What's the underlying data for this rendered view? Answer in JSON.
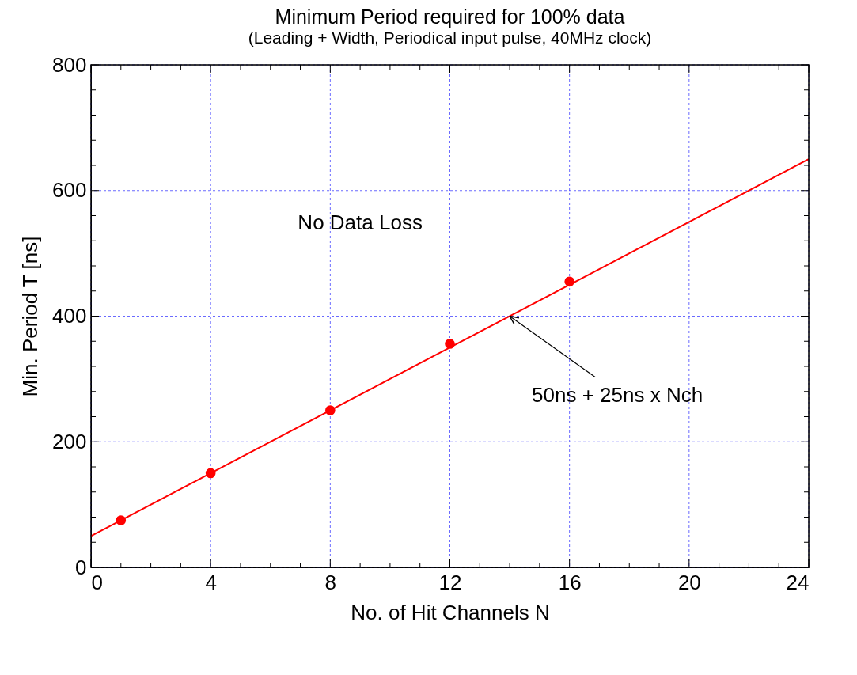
{
  "chart_data": {
    "type": "scatter",
    "title": "Minimum Period required for 100% data",
    "subtitle": "(Leading + Width, Periodical input pulse, 40MHz clock)",
    "xlabel": "No. of Hit Channels N",
    "ylabel": "Min. Period T [ns]",
    "x": [
      1,
      4,
      8,
      12,
      16
    ],
    "series": [
      {
        "type": "scatter",
        "color": "#ff0000",
        "values": [
          75,
          150,
          250,
          356,
          455
        ],
        "marker": "circle"
      },
      {
        "type": "line",
        "color": "#ff0000",
        "x": [
          0,
          24
        ],
        "values": [
          50,
          650
        ],
        "marker": "none",
        "line_style": "solid"
      }
    ],
    "xlim": [
      0,
      24
    ],
    "ylim": [
      0,
      800
    ],
    "xticks": [
      0,
      {
        "value": 1,
        "label": null
      },
      {
        "value": 2,
        "label": null
      },
      {
        "value": 3,
        "label": null
      },
      4,
      {
        "value": 5,
        "label": null
      },
      {
        "value": 6,
        "label": null
      },
      {
        "value": 7,
        "label": null
      },
      8,
      {
        "value": 9,
        "label": null
      },
      {
        "value": 10,
        "label": null
      },
      {
        "value": 11,
        "label": null
      },
      12,
      {
        "value": 13,
        "label": null
      },
      {
        "value": 14,
        "label": null
      },
      {
        "value": 15,
        "label": null
      },
      16,
      {
        "value": 17,
        "label": null
      },
      {
        "value": 18,
        "label": null
      },
      {
        "value": 19,
        "label": null
      },
      20,
      {
        "value": 21,
        "label": null
      },
      {
        "value": 22,
        "label": null
      },
      {
        "value": 23,
        "label": null
      },
      24
    ],
    "yticks": [
      0,
      {
        "value": 40,
        "label": null
      },
      {
        "value": 80,
        "label": null
      },
      {
        "value": 120,
        "label": null
      },
      {
        "value": 160,
        "label": null
      },
      200,
      {
        "value": 240,
        "label": null
      },
      {
        "value": 280,
        "label": null
      },
      {
        "value": 320,
        "label": null
      },
      {
        "value": 360,
        "label": null
      },
      400,
      {
        "value": 440,
        "label": null
      },
      {
        "value": 480,
        "label": null
      },
      {
        "value": 520,
        "label": null
      },
      {
        "value": 560,
        "label": null
      },
      600,
      {
        "value": 640,
        "label": null
      },
      {
        "value": 680,
        "label": null
      },
      {
        "value": 720,
        "label": null
      },
      {
        "value": 760,
        "label": null
      },
      800
    ],
    "grid": true,
    "annotations": [
      "No Data Loss",
      {
        "text": "50ns + 25ns x Nch",
        "x": 14,
        "y": 400
      }
    ]
  }
}
